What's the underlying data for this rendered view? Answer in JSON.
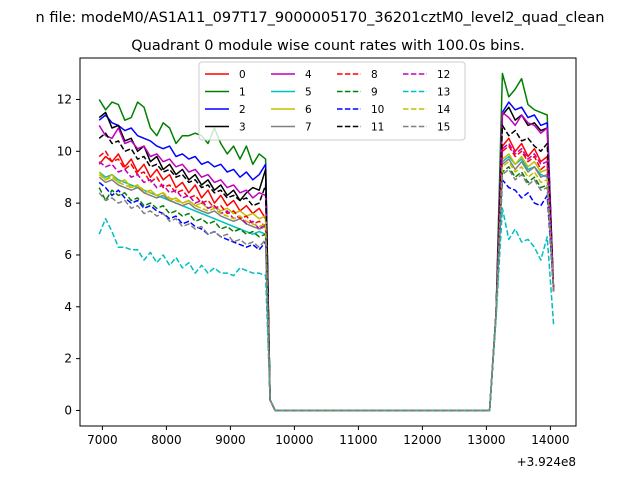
{
  "figure": {
    "suptitle": "n file: modeM0/AS1A11_097T17_9000005170_36201cztM0_level2_quad_clean",
    "title": "Quadrant 0 module wise count rates with 100.0s bins."
  },
  "chart_data": {
    "type": "line",
    "title": "Quadrant 0 module wise count rates with 100.0s bins.",
    "xlabel": "",
    "ylabel": "",
    "x_offset_label": "+3.924e8",
    "xlim": [
      6650,
      14400
    ],
    "ylim": [
      -0.6,
      13.6
    ],
    "xticks": [
      7000,
      8000,
      9000,
      10000,
      11000,
      12000,
      13000,
      14000
    ],
    "yticks": [
      0,
      2,
      4,
      6,
      8,
      10,
      12
    ],
    "grid": false,
    "legend": {
      "placement": "top-center",
      "columns": 4
    },
    "x_segment1": [
      6950,
      7050,
      7150,
      7250,
      7350,
      7450,
      7550,
      7650,
      7750,
      7850,
      7950,
      8050,
      8150,
      8250,
      8350,
      8450,
      8550,
      8650,
      8750,
      8850,
      8950,
      9050,
      9150,
      9250,
      9350,
      9450,
      9550
    ],
    "x_tail": [
      9620,
      9700,
      13050,
      13150,
      13250,
      13350,
      13450,
      13550,
      13650,
      13750,
      13850,
      13950,
      14050
    ],
    "series": [
      {
        "name": "0",
        "color": "#ff0000",
        "dash": "solid",
        "y_segment1": [
          9.5,
          9.8,
          9.6,
          9.9,
          9.4,
          9.7,
          9.2,
          9.5,
          9.0,
          9.3,
          8.9,
          9.1,
          8.6,
          8.8,
          8.4,
          8.7,
          8.2,
          8.5,
          8.0,
          8.3,
          7.9,
          8.1,
          7.7,
          7.9,
          7.6,
          7.8,
          7.4
        ],
        "y_tail": [
          0.4,
          0.0,
          0.0,
          3.7,
          10.2,
          10.5,
          10.0,
          10.3,
          9.8,
          10.1,
          9.6,
          9.8,
          4.6
        ]
      },
      {
        "name": "1",
        "color": "#008000",
        "dash": "solid",
        "y_segment1": [
          12.0,
          11.6,
          11.9,
          11.8,
          11.2,
          11.3,
          11.9,
          11.7,
          10.9,
          10.6,
          11.1,
          10.9,
          10.3,
          10.6,
          10.6,
          10.7,
          10.6,
          10.3,
          10.9,
          10.3,
          9.9,
          10.2,
          9.7,
          10.2,
          9.5,
          9.9,
          9.7
        ],
        "y_tail": [
          0.4,
          0.0,
          0.0,
          3.7,
          13.0,
          12.1,
          12.4,
          12.8,
          11.8,
          11.6,
          11.5,
          11.4,
          4.6
        ]
      },
      {
        "name": "2",
        "color": "#0000ff",
        "dash": "solid",
        "y_segment1": [
          11.2,
          11.4,
          11.1,
          11.0,
          10.8,
          10.9,
          10.6,
          10.5,
          10.4,
          10.2,
          10.1,
          10.2,
          9.8,
          9.9,
          9.7,
          9.8,
          9.5,
          9.6,
          9.4,
          9.5,
          9.2,
          9.3,
          9.0,
          9.2,
          8.9,
          9.1,
          9.5
        ],
        "y_tail": [
          0.4,
          0.0,
          0.0,
          3.7,
          11.5,
          11.9,
          11.6,
          11.7,
          11.3,
          11.4,
          11.0,
          11.1,
          4.6
        ]
      },
      {
        "name": "3",
        "color": "#000000",
        "dash": "solid",
        "y_segment1": [
          11.3,
          11.5,
          10.9,
          11.0,
          10.4,
          10.5,
          10.0,
          10.2,
          9.6,
          9.8,
          9.3,
          9.5,
          9.1,
          9.3,
          8.9,
          9.1,
          8.7,
          8.9,
          8.5,
          8.7,
          8.3,
          8.5,
          8.1,
          8.4,
          8.6,
          8.5,
          9.3
        ],
        "y_tail": [
          0.4,
          0.0,
          0.0,
          3.7,
          11.4,
          11.7,
          11.2,
          11.4,
          11.0,
          11.1,
          10.8,
          10.9,
          4.6
        ]
      },
      {
        "name": "4",
        "color": "#bf00bf",
        "dash": "solid",
        "y_segment1": [
          11.0,
          10.6,
          10.5,
          10.9,
          10.3,
          10.4,
          10.1,
          10.2,
          9.8,
          9.9,
          9.6,
          9.7,
          9.4,
          9.5,
          9.2,
          9.3,
          9.0,
          9.1,
          8.8,
          8.9,
          8.6,
          8.7,
          8.4,
          8.5,
          8.2,
          8.4,
          8.3
        ],
        "y_tail": [
          0.4,
          0.0,
          0.0,
          3.7,
          11.5,
          11.3,
          11.0,
          11.4,
          11.1,
          11.0,
          10.7,
          10.9,
          4.6
        ]
      },
      {
        "name": "5",
        "color": "#00bfbf",
        "dash": "solid",
        "y_segment1": [
          9.2,
          9.0,
          9.1,
          8.9,
          8.8,
          8.7,
          8.6,
          8.5,
          8.4,
          8.3,
          8.2,
          8.1,
          8.0,
          7.9,
          7.8,
          7.7,
          7.6,
          7.5,
          7.4,
          7.3,
          7.2,
          7.1,
          7.0,
          6.9,
          6.8,
          6.9,
          6.8
        ],
        "y_tail": [
          0.4,
          0.0,
          0.0,
          3.7,
          9.6,
          9.8,
          9.5,
          9.7,
          9.3,
          9.4,
          9.1,
          9.0,
          4.6
        ]
      },
      {
        "name": "6",
        "color": "#bfbf00",
        "dash": "solid",
        "y_segment1": [
          9.2,
          8.9,
          9.1,
          8.8,
          8.9,
          8.6,
          8.7,
          8.4,
          8.5,
          8.3,
          8.4,
          8.1,
          8.2,
          8.0,
          8.1,
          7.9,
          8.0,
          7.8,
          7.9,
          7.7,
          7.8,
          7.6,
          7.7,
          7.5,
          7.6,
          7.4,
          7.5
        ],
        "y_tail": [
          0.4,
          0.0,
          0.0,
          3.7,
          9.7,
          9.9,
          9.5,
          9.8,
          9.4,
          9.6,
          9.2,
          9.3,
          4.6
        ]
      },
      {
        "name": "7",
        "color": "#808080",
        "dash": "solid",
        "y_segment1": [
          9.0,
          8.8,
          8.9,
          8.7,
          8.6,
          8.5,
          8.6,
          8.4,
          8.3,
          8.2,
          8.3,
          8.1,
          8.0,
          7.9,
          8.0,
          7.8,
          7.7,
          7.6,
          7.7,
          7.5,
          7.4,
          7.3,
          7.4,
          7.2,
          7.1,
          7.0,
          7.1
        ],
        "y_tail": [
          0.4,
          0.0,
          0.0,
          3.7,
          9.5,
          9.7,
          9.3,
          9.6,
          9.2,
          9.4,
          9.0,
          9.1,
          4.6
        ]
      },
      {
        "name": "8",
        "color": "#ff0000",
        "dash": "dashed",
        "y_segment1": [
          9.8,
          10.0,
          9.6,
          9.7,
          9.3,
          9.5,
          9.1,
          9.2,
          8.8,
          9.0,
          8.6,
          8.7,
          8.4,
          8.5,
          8.2,
          8.3,
          8.0,
          8.1,
          7.8,
          7.9,
          7.6,
          7.7,
          7.4,
          7.5,
          7.2,
          7.3,
          7.1
        ],
        "y_tail": [
          0.4,
          0.0,
          0.0,
          3.7,
          10.0,
          10.2,
          9.8,
          10.0,
          9.6,
          9.8,
          9.3,
          9.5,
          4.6
        ]
      },
      {
        "name": "9",
        "color": "#008000",
        "dash": "dashed",
        "y_segment1": [
          8.6,
          8.1,
          8.5,
          8.3,
          8.4,
          8.1,
          8.2,
          7.9,
          8.0,
          7.8,
          7.9,
          7.6,
          7.7,
          7.5,
          7.6,
          7.3,
          7.4,
          7.2,
          7.3,
          7.0,
          7.1,
          6.9,
          7.0,
          6.8,
          6.9,
          6.7,
          6.8
        ],
        "y_tail": [
          0.4,
          0.0,
          0.0,
          3.7,
          9.2,
          9.4,
          9.0,
          9.2,
          8.8,
          9.0,
          8.6,
          8.7,
          4.6
        ]
      },
      {
        "name": "10",
        "color": "#0000ff",
        "dash": "dashed",
        "y_segment1": [
          8.8,
          8.6,
          8.3,
          8.5,
          8.2,
          8.0,
          8.1,
          7.8,
          7.9,
          7.7,
          7.6,
          7.4,
          7.5,
          7.2,
          7.3,
          7.1,
          7.0,
          6.8,
          6.9,
          6.7,
          6.6,
          6.5,
          6.4,
          6.3,
          6.4,
          6.2,
          6.5
        ],
        "y_tail": [
          0.4,
          0.0,
          0.0,
          3.7,
          8.9,
          8.6,
          8.5,
          8.2,
          8.4,
          8.0,
          7.9,
          8.3,
          4.6
        ]
      },
      {
        "name": "11",
        "color": "#000000",
        "dash": "dashed",
        "y_segment1": [
          10.5,
          10.7,
          10.3,
          10.4,
          10.0,
          10.1,
          9.7,
          9.8,
          9.4,
          9.5,
          9.2,
          9.3,
          9.0,
          9.1,
          8.8,
          8.9,
          8.6,
          8.7,
          8.4,
          8.5,
          8.2,
          8.3,
          8.1,
          8.2,
          7.9,
          8.0,
          8.7
        ],
        "y_tail": [
          0.4,
          0.0,
          0.0,
          3.7,
          11.0,
          10.6,
          10.8,
          10.4,
          10.5,
          10.2,
          10.0,
          10.3,
          4.6
        ]
      },
      {
        "name": "12",
        "color": "#bf00bf",
        "dash": "dashed",
        "y_segment1": [
          9.6,
          9.4,
          9.5,
          9.2,
          9.3,
          9.0,
          9.1,
          8.8,
          8.9,
          8.6,
          8.7,
          8.4,
          8.5,
          8.2,
          8.3,
          8.0,
          8.1,
          7.8,
          7.9,
          7.6,
          7.7,
          7.4,
          7.5,
          7.2,
          7.3,
          7.0,
          7.2
        ],
        "y_tail": [
          0.4,
          0.0,
          0.0,
          3.7,
          10.1,
          10.3,
          9.9,
          10.1,
          9.7,
          9.9,
          9.5,
          9.6,
          4.6
        ]
      },
      {
        "name": "13",
        "color": "#00bfbf",
        "dash": "dashed",
        "y_segment1": [
          6.8,
          7.4,
          6.9,
          6.3,
          6.3,
          6.2,
          6.2,
          5.8,
          6.1,
          5.7,
          6.0,
          5.6,
          5.9,
          5.5,
          5.7,
          5.3,
          5.6,
          5.3,
          5.5,
          5.3,
          5.3,
          5.2,
          5.5,
          5.4,
          5.3,
          5.3,
          5.2
        ],
        "y_tail": [
          0.4,
          0.0,
          0.0,
          3.5,
          7.8,
          6.6,
          7.0,
          6.5,
          6.6,
          6.3,
          5.8,
          6.7,
          3.3
        ]
      },
      {
        "name": "14",
        "color": "#bfbf00",
        "dash": "dashed",
        "y_segment1": [
          9.1,
          8.9,
          9.0,
          8.8,
          8.7,
          8.6,
          8.7,
          8.5,
          8.4,
          8.3,
          8.4,
          8.2,
          8.1,
          8.0,
          8.1,
          7.9,
          7.8,
          7.7,
          7.8,
          7.6,
          7.5,
          7.4,
          7.5,
          7.3,
          7.2,
          7.1,
          7.2
        ],
        "y_tail": [
          0.4,
          0.0,
          0.0,
          3.7,
          9.4,
          9.6,
          9.2,
          9.4,
          9.0,
          9.2,
          8.8,
          8.9,
          4.6
        ]
      },
      {
        "name": "15",
        "color": "#808080",
        "dash": "dashed",
        "y_segment1": [
          8.4,
          8.1,
          8.2,
          8.0,
          8.1,
          7.8,
          7.9,
          7.6,
          7.7,
          7.5,
          7.6,
          7.3,
          7.4,
          7.1,
          7.2,
          7.0,
          7.1,
          6.8,
          6.9,
          6.7,
          6.8,
          6.5,
          6.6,
          6.4,
          6.5,
          6.3,
          6.6
        ],
        "y_tail": [
          0.4,
          0.0,
          0.0,
          3.7,
          9.1,
          9.3,
          8.9,
          9.1,
          8.7,
          8.9,
          8.5,
          8.6,
          4.6
        ]
      }
    ]
  }
}
